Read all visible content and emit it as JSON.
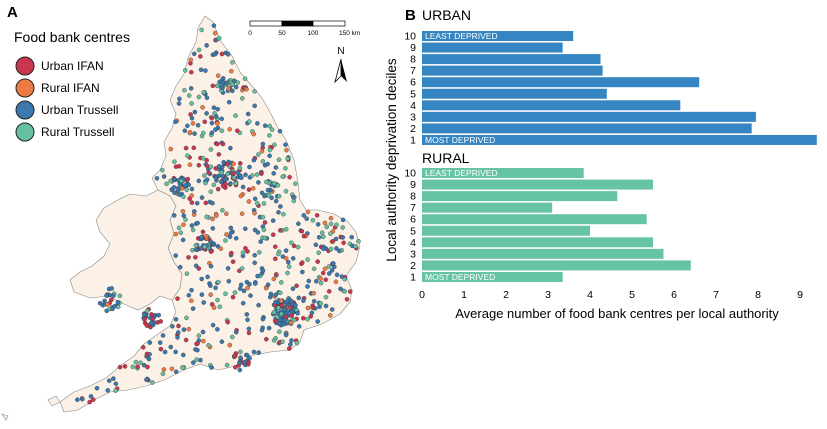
{
  "panel_a": {
    "letter": "A",
    "legend_title": "Food bank centres",
    "legend_items": [
      {
        "label": "Urban IFAN",
        "color": "#c8374f"
      },
      {
        "label": "Rural IFAN",
        "color": "#ee7a45"
      },
      {
        "label": "Urban Trussell",
        "color": "#3b78ad"
      },
      {
        "label": "Rural Trussell",
        "color": "#66bf9e"
      }
    ],
    "scale_labels": [
      "0",
      "50",
      "100",
      "150 km"
    ],
    "north_label": "N",
    "land_color": "#fbf1e6"
  },
  "panel_b": {
    "letter": "B",
    "ylabel": "Local authority deprivation deciles",
    "xlabel": "Average number of food bank centres per local authority"
  },
  "chart_data": [
    {
      "type": "bar",
      "orientation": "horizontal",
      "title": "URBAN",
      "categories": [
        "10",
        "9",
        "8",
        "7",
        "6",
        "5",
        "4",
        "3",
        "2",
        "1"
      ],
      "values": [
        3.6,
        3.35,
        4.25,
        4.3,
        6.6,
        4.4,
        6.15,
        7.95,
        7.85,
        9.4
      ],
      "bar_labels": {
        "10": "LEAST DEPRIVED",
        "1": "MOST DEPRIVED"
      },
      "color": "#3585c2",
      "xlim": [
        0,
        9.5
      ]
    },
    {
      "type": "bar",
      "orientation": "horizontal",
      "title": "RURAL",
      "categories": [
        "10",
        "9",
        "8",
        "7",
        "6",
        "5",
        "4",
        "3",
        "2",
        "1"
      ],
      "values": [
        3.85,
        5.5,
        4.65,
        3.1,
        5.35,
        4.0,
        5.5,
        5.75,
        6.4,
        3.35
      ],
      "bar_labels": {
        "10": "LEAST DEPRIVED",
        "1": "MOST DEPRIVED"
      },
      "color": "#66c4a3",
      "xlim": [
        0,
        9.5
      ],
      "xticks": [
        0,
        1,
        2,
        3,
        4,
        5,
        6,
        7,
        8,
        9
      ]
    }
  ]
}
